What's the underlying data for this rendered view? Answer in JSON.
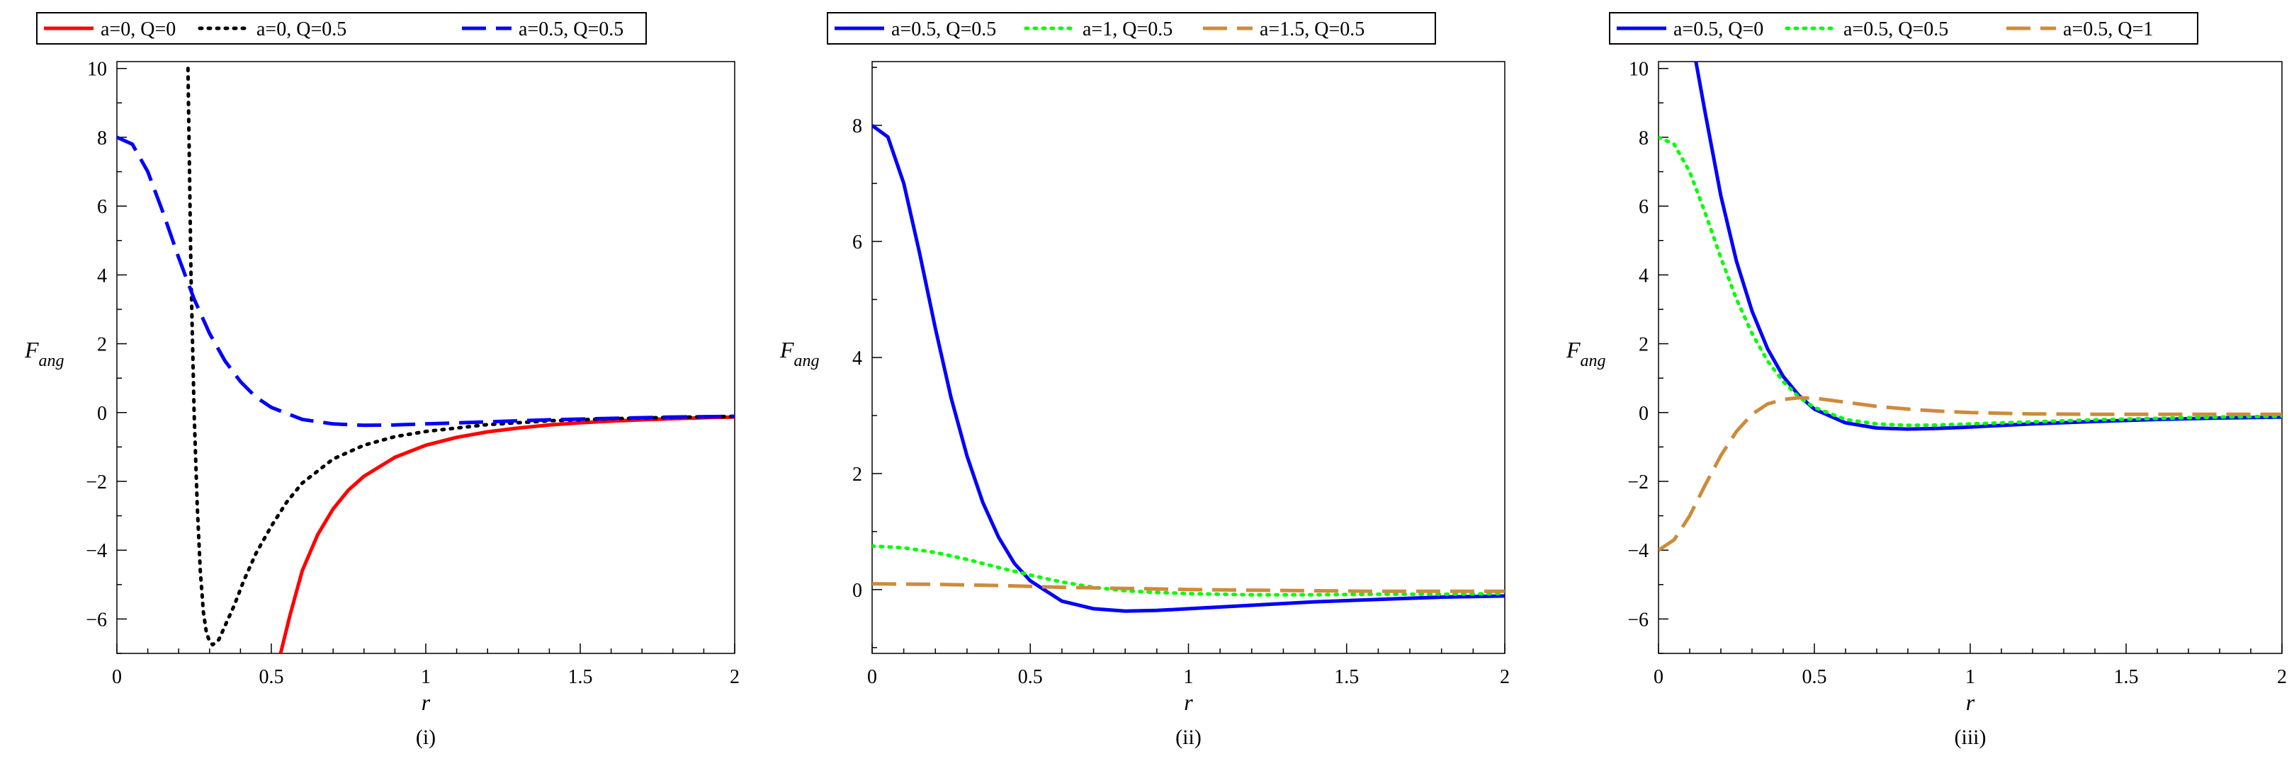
{
  "chart_data": [
    {
      "type": "line",
      "panel_label": "(i)",
      "xlabel": "r",
      "ylabel": "F_ang",
      "ylabel_main": "F",
      "ylabel_sub": "ang",
      "xlim": [
        0,
        2
      ],
      "ylim": [
        -7,
        10.2
      ],
      "xticks": [
        0,
        0.5,
        1,
        1.5,
        2
      ],
      "xtick_labels": [
        "0",
        "0.5",
        "1",
        "1.5",
        "2"
      ],
      "yticks": [
        -6,
        -4,
        -2,
        0,
        2,
        4,
        6,
        8,
        10
      ],
      "ytick_labels": [
        "−6",
        "−4",
        "−2",
        "0",
        "2",
        "4",
        "6",
        "8",
        "10"
      ],
      "legend_position": "top",
      "series": [
        {
          "name": "a=0, Q=0",
          "color": "#ff0000",
          "style": "solid",
          "x": [
            0.53,
            0.56,
            0.6,
            0.65,
            0.7,
            0.75,
            0.8,
            0.9,
            1.0,
            1.1,
            1.2,
            1.3,
            1.4,
            1.5,
            1.6,
            1.7,
            1.8,
            1.9,
            2.0
          ],
          "y": [
            -7.0,
            -5.9,
            -4.6,
            -3.55,
            -2.8,
            -2.25,
            -1.85,
            -1.3,
            -0.95,
            -0.72,
            -0.56,
            -0.45,
            -0.36,
            -0.3,
            -0.25,
            -0.21,
            -0.18,
            -0.15,
            -0.13
          ]
        },
        {
          "name": "a=0, Q=0.5",
          "color": "#000000",
          "style": "dotted",
          "x": [
            0.23,
            0.235,
            0.24,
            0.25,
            0.26,
            0.27,
            0.28,
            0.29,
            0.3,
            0.31,
            0.33,
            0.35,
            0.38,
            0.41,
            0.45,
            0.5,
            0.55,
            0.6,
            0.7,
            0.8,
            0.9,
            1.0,
            1.2,
            1.4,
            1.6,
            1.8,
            2.0
          ],
          "y": [
            10.0,
            7.0,
            4.0,
            0.0,
            -2.7,
            -4.6,
            -5.8,
            -6.4,
            -6.65,
            -6.75,
            -6.6,
            -6.2,
            -5.6,
            -4.9,
            -4.1,
            -3.3,
            -2.6,
            -2.05,
            -1.35,
            -0.95,
            -0.7,
            -0.55,
            -0.35,
            -0.24,
            -0.18,
            -0.14,
            -0.11
          ]
        },
        {
          "name": "a=0.5, Q=0.5",
          "color": "#0000ff",
          "style": "dashed",
          "x": [
            0.0,
            0.05,
            0.1,
            0.15,
            0.2,
            0.25,
            0.3,
            0.35,
            0.4,
            0.45,
            0.5,
            0.6,
            0.7,
            0.8,
            0.9,
            1.0,
            1.2,
            1.4,
            1.6,
            1.8,
            2.0
          ],
          "y": [
            8.0,
            7.8,
            7.0,
            5.8,
            4.5,
            3.3,
            2.3,
            1.5,
            0.9,
            0.45,
            0.15,
            -0.2,
            -0.33,
            -0.37,
            -0.36,
            -0.33,
            -0.27,
            -0.21,
            -0.17,
            -0.13,
            -0.11
          ]
        }
      ]
    },
    {
      "type": "line",
      "panel_label": "(ii)",
      "xlabel": "r",
      "ylabel": "F_ang",
      "ylabel_main": "F",
      "ylabel_sub": "ang",
      "xlim": [
        0,
        2
      ],
      "ylim": [
        -1.1,
        9.1
      ],
      "xticks": [
        0,
        0.5,
        1,
        1.5,
        2
      ],
      "xtick_labels": [
        "0",
        "0.5",
        "1",
        "1.5",
        "2"
      ],
      "yticks": [
        0,
        2,
        4,
        6,
        8
      ],
      "ytick_labels": [
        "0",
        "2",
        "4",
        "6",
        "8"
      ],
      "legend_position": "top",
      "series": [
        {
          "name": "a=0.5, Q=0.5",
          "color": "#0000ff",
          "style": "solid",
          "x": [
            0.0,
            0.05,
            0.1,
            0.15,
            0.2,
            0.25,
            0.3,
            0.35,
            0.4,
            0.45,
            0.5,
            0.6,
            0.7,
            0.8,
            0.9,
            1.0,
            1.2,
            1.4,
            1.6,
            1.8,
            2.0
          ],
          "y": [
            8.0,
            7.8,
            7.0,
            5.8,
            4.5,
            3.3,
            2.3,
            1.5,
            0.9,
            0.45,
            0.15,
            -0.2,
            -0.33,
            -0.37,
            -0.36,
            -0.33,
            -0.27,
            -0.21,
            -0.17,
            -0.13,
            -0.11
          ]
        },
        {
          "name": "a=1, Q=0.5",
          "color": "#00ff00",
          "style": "dotted",
          "x": [
            0.0,
            0.1,
            0.2,
            0.3,
            0.4,
            0.5,
            0.6,
            0.7,
            0.8,
            0.9,
            1.0,
            1.2,
            1.4,
            1.6,
            1.8,
            2.0
          ],
          "y": [
            0.75,
            0.72,
            0.64,
            0.52,
            0.38,
            0.25,
            0.13,
            0.04,
            -0.02,
            -0.05,
            -0.07,
            -0.09,
            -0.09,
            -0.08,
            -0.08,
            -0.07
          ]
        },
        {
          "name": "a=1.5, Q=0.5",
          "color": "#cc8b3c",
          "style": "dashed",
          "x": [
            0.0,
            0.2,
            0.4,
            0.6,
            0.8,
            1.0,
            1.2,
            1.4,
            1.6,
            1.8,
            2.0
          ],
          "y": [
            0.1,
            0.09,
            0.07,
            0.04,
            0.02,
            0.0,
            -0.01,
            -0.02,
            -0.03,
            -0.03,
            -0.03
          ]
        }
      ]
    },
    {
      "type": "line",
      "panel_label": "(iii)",
      "xlabel": "r",
      "ylabel": "F_ang",
      "ylabel_main": "F",
      "ylabel_sub": "ang",
      "xlim": [
        0,
        2
      ],
      "ylim": [
        -7,
        10.2
      ],
      "xticks": [
        0,
        0.5,
        1,
        1.5,
        2
      ],
      "xtick_labels": [
        "0",
        "0.5",
        "1",
        "1.5",
        "2"
      ],
      "yticks": [
        -6,
        -4,
        -2,
        0,
        2,
        4,
        6,
        8,
        10
      ],
      "ytick_labels": [
        "−6",
        "−4",
        "−2",
        "0",
        "2",
        "4",
        "6",
        "8",
        "10"
      ],
      "legend_position": "top",
      "series": [
        {
          "name": "a=0.5, Q=0",
          "color": "#0000ff",
          "style": "solid",
          "x": [
            0.12,
            0.15,
            0.2,
            0.25,
            0.3,
            0.35,
            0.4,
            0.45,
            0.5,
            0.6,
            0.7,
            0.8,
            0.9,
            1.0,
            1.2,
            1.4,
            1.6,
            1.8,
            2.0
          ],
          "y": [
            10.2,
            8.7,
            6.3,
            4.4,
            2.95,
            1.85,
            1.05,
            0.5,
            0.1,
            -0.3,
            -0.45,
            -0.48,
            -0.46,
            -0.42,
            -0.33,
            -0.26,
            -0.2,
            -0.16,
            -0.13
          ]
        },
        {
          "name": "a=0.5, Q=0.5",
          "color": "#00ff00",
          "style": "dotted",
          "x": [
            0.0,
            0.05,
            0.1,
            0.15,
            0.2,
            0.25,
            0.3,
            0.35,
            0.4,
            0.45,
            0.5,
            0.6,
            0.7,
            0.8,
            0.9,
            1.0,
            1.2,
            1.4,
            1.6,
            1.8,
            2.0
          ],
          "y": [
            8.0,
            7.8,
            7.0,
            5.8,
            4.5,
            3.3,
            2.3,
            1.5,
            0.9,
            0.45,
            0.15,
            -0.2,
            -0.33,
            -0.37,
            -0.36,
            -0.33,
            -0.27,
            -0.21,
            -0.17,
            -0.13,
            -0.11
          ]
        },
        {
          "name": "a=0.5, Q=1",
          "color": "#cc8b3c",
          "style": "dashed",
          "x": [
            0.0,
            0.05,
            0.1,
            0.15,
            0.2,
            0.25,
            0.3,
            0.35,
            0.4,
            0.45,
            0.5,
            0.6,
            0.7,
            0.8,
            0.9,
            1.0,
            1.2,
            1.4,
            1.6,
            1.8,
            2.0
          ],
          "y": [
            -4.0,
            -3.7,
            -3.0,
            -2.1,
            -1.25,
            -0.55,
            -0.05,
            0.25,
            0.38,
            0.43,
            0.42,
            0.3,
            0.18,
            0.1,
            0.04,
            0.0,
            -0.04,
            -0.05,
            -0.05,
            -0.05,
            -0.05
          ]
        }
      ]
    }
  ]
}
